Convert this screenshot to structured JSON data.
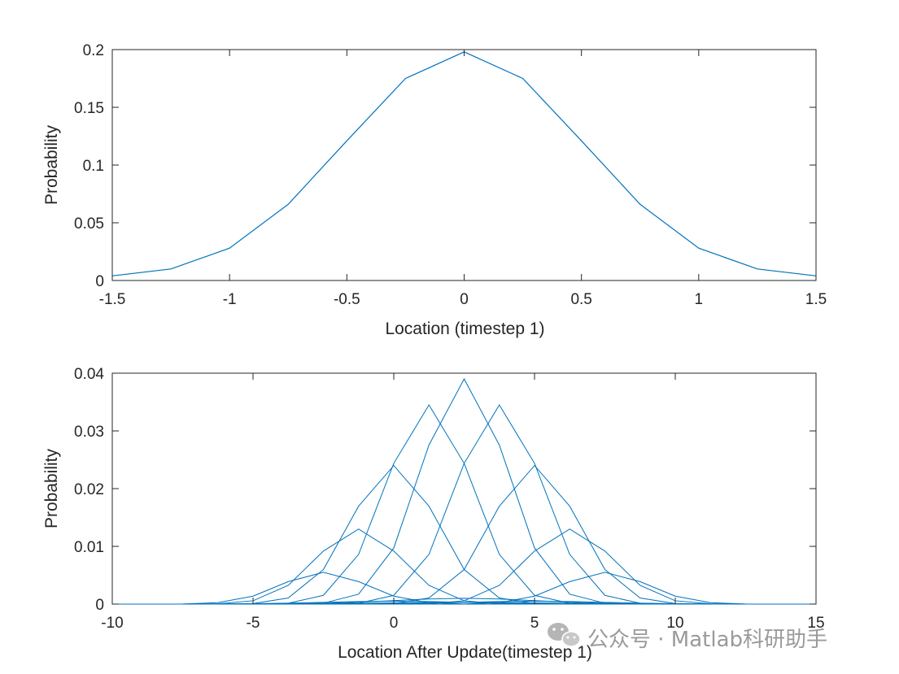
{
  "chart_data": [
    {
      "type": "line",
      "title": "",
      "xlabel": "Location (timestep 1)",
      "ylabel": "Probability",
      "xlim": [
        -1.5,
        1.5
      ],
      "ylim": [
        0,
        0.2
      ],
      "xticks": [
        -1.5,
        -1,
        -0.5,
        0,
        0.5,
        1,
        1.5
      ],
      "xtick_labels": [
        "-1.5",
        "-1",
        "-0.5",
        "0",
        "0.5",
        "1",
        "1.5"
      ],
      "yticks": [
        0,
        0.05,
        0.1,
        0.15,
        0.2
      ],
      "ytick_labels": [
        "0",
        "0.05",
        "0.1",
        "0.15",
        "0.2"
      ],
      "grid": false,
      "color": "#0072BD",
      "series": [
        {
          "x": [
            -1.5,
            -1.25,
            -1,
            -0.75,
            -0.5,
            -0.25,
            0,
            0.25,
            0.5,
            0.75,
            1,
            1.25,
            1.5
          ],
          "y": [
            0.004,
            0.01,
            0.028,
            0.066,
            0.121,
            0.175,
            0.198,
            0.175,
            0.121,
            0.066,
            0.028,
            0.01,
            0.004
          ]
        }
      ]
    },
    {
      "type": "line",
      "title": "",
      "xlabel": "Location After Update(timestep 1)",
      "ylabel": "Probability",
      "xlim": [
        -10,
        15
      ],
      "ylim": [
        0,
        0.04
      ],
      "xticks": [
        -10,
        -5,
        0,
        5,
        10,
        15
      ],
      "xtick_labels": [
        "-10",
        "-5",
        "0",
        "5",
        "10",
        "15"
      ],
      "yticks": [
        0,
        0.01,
        0.02,
        0.03,
        0.04
      ],
      "ytick_labels": [
        "0",
        "0.01",
        "0.02",
        "0.03",
        "0.04"
      ],
      "grid": false,
      "color": "#0072BD",
      "family": {
        "description_of_shape": "13 overlapping bell-shaped curves sampled at 1.25 steps",
        "x": [
          -10,
          -8.75,
          -7.5,
          -6.25,
          -5,
          -3.75,
          -2.5,
          -1.25,
          0,
          1.25,
          2.5,
          3.75,
          5,
          6.25,
          7.5,
          8.75,
          10,
          11.25,
          12.5,
          13.75,
          15
        ],
        "centers": [
          -2.5,
          -1.25,
          0,
          1.25,
          2.5,
          3.75,
          5,
          6.25,
          7.5,
          2.5,
          0,
          5,
          2.5
        ],
        "widths": [
          1.5,
          1.5,
          1.5,
          1.5,
          1.5,
          1.5,
          1.5,
          1.5,
          1.5,
          2.5,
          2.5,
          2.5,
          3.0
        ],
        "peaks": [
          0.0055,
          0.013,
          0.024,
          0.0345,
          0.039,
          0.0345,
          0.024,
          0.013,
          0.0055,
          0.001,
          0.0005,
          0.0005,
          0.0003
        ]
      }
    }
  ],
  "watermark": {
    "text": "公众号 · Matlab科研助手",
    "icon": "wechat-icon"
  }
}
